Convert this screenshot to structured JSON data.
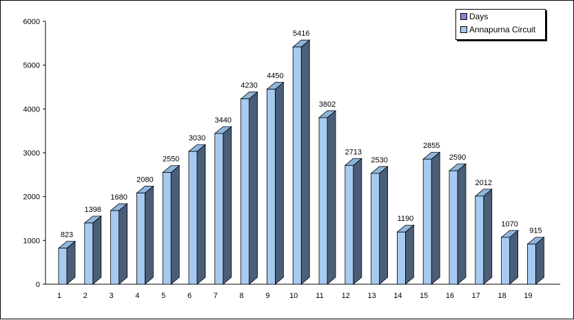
{
  "chart_data": {
    "type": "bar",
    "categories": [
      "1",
      "2",
      "3",
      "4",
      "5",
      "6",
      "7",
      "8",
      "9",
      "10",
      "11",
      "12",
      "13",
      "14",
      "15",
      "16",
      "17",
      "18",
      "19"
    ],
    "series": [
      {
        "name": "Annapurna Circuit",
        "values": [
          823,
          1398,
          1680,
          2080,
          2550,
          3030,
          3440,
          4230,
          4450,
          5416,
          3802,
          2713,
          2530,
          1190,
          2855,
          2590,
          2012,
          1070,
          915
        ]
      }
    ],
    "y_ticks": [
      "0",
      "1000",
      "2000",
      "3000",
      "4000",
      "5000",
      "6000"
    ],
    "ylim": [
      0,
      6000
    ],
    "grid": false,
    "legend_position": "top-right",
    "style": "3d-column"
  },
  "legend": {
    "items": [
      {
        "label": "Days",
        "color": "#7f84d6"
      },
      {
        "label": "Annapurna Circuit",
        "color": "#a6caf0"
      }
    ]
  },
  "colors": {
    "bar_front": "#a6caf0",
    "bar_side": "#4a5e78",
    "bar_top": "#8fb5dc",
    "axis": "#000000"
  }
}
